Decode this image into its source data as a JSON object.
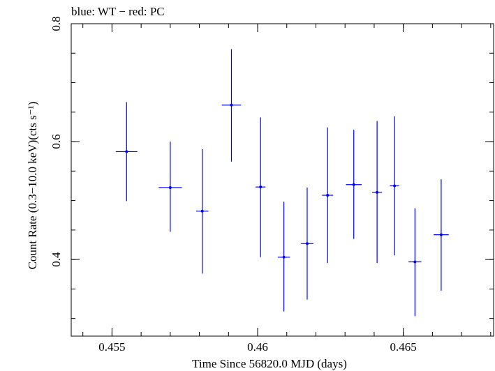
{
  "chart_data": {
    "type": "scatter",
    "title": "blue: WT − red: PC",
    "xlabel": "Time Since 56820.0 MJD (days)",
    "ylabel": "Count Rate (0.3−10.0 keV)(cts s⁻¹)",
    "xlim": [
      0.4536,
      0.4681
    ],
    "ylim": [
      0.27,
      0.8
    ],
    "x_ticks": [
      0.455,
      0.46,
      0.465
    ],
    "x_tick_labels": [
      "0.455",
      "0.46",
      "0.465"
    ],
    "y_ticks": [
      0.4,
      0.6,
      0.8
    ],
    "y_tick_labels": [
      "0.4",
      "0.6",
      "0.8"
    ],
    "grid": false,
    "series": [
      {
        "name": "WT",
        "color": "#0000ff",
        "points": [
          {
            "x": 0.4555,
            "y": 0.583,
            "xerr": 0.00037,
            "ylo": 0.499,
            "yhi": 0.667
          },
          {
            "x": 0.457,
            "y": 0.522,
            "xerr": 0.0004,
            "ylo": 0.447,
            "yhi": 0.6
          },
          {
            "x": 0.4581,
            "y": 0.482,
            "xerr": 0.00021,
            "ylo": 0.376,
            "yhi": 0.587
          },
          {
            "x": 0.4591,
            "y": 0.662,
            "xerr": 0.00033,
            "ylo": 0.566,
            "yhi": 0.757
          },
          {
            "x": 0.4601,
            "y": 0.523,
            "xerr": 0.00017,
            "ylo": 0.404,
            "yhi": 0.641
          },
          {
            "x": 0.4609,
            "y": 0.404,
            "xerr": 0.00021,
            "ylo": 0.312,
            "yhi": 0.498
          },
          {
            "x": 0.4617,
            "y": 0.427,
            "xerr": 0.00021,
            "ylo": 0.332,
            "yhi": 0.522
          },
          {
            "x": 0.4624,
            "y": 0.509,
            "xerr": 0.00019,
            "ylo": 0.394,
            "yhi": 0.624
          },
          {
            "x": 0.4633,
            "y": 0.527,
            "xerr": 0.00027,
            "ylo": 0.435,
            "yhi": 0.62
          },
          {
            "x": 0.4641,
            "y": 0.514,
            "xerr": 0.00017,
            "ylo": 0.394,
            "yhi": 0.635
          },
          {
            "x": 0.4647,
            "y": 0.525,
            "xerr": 0.00016,
            "ylo": 0.407,
            "yhi": 0.643
          },
          {
            "x": 0.4654,
            "y": 0.396,
            "xerr": 0.00022,
            "ylo": 0.304,
            "yhi": 0.487
          },
          {
            "x": 0.4663,
            "y": 0.442,
            "xerr": 0.00026,
            "ylo": 0.347,
            "yhi": 0.536
          }
        ]
      }
    ]
  }
}
